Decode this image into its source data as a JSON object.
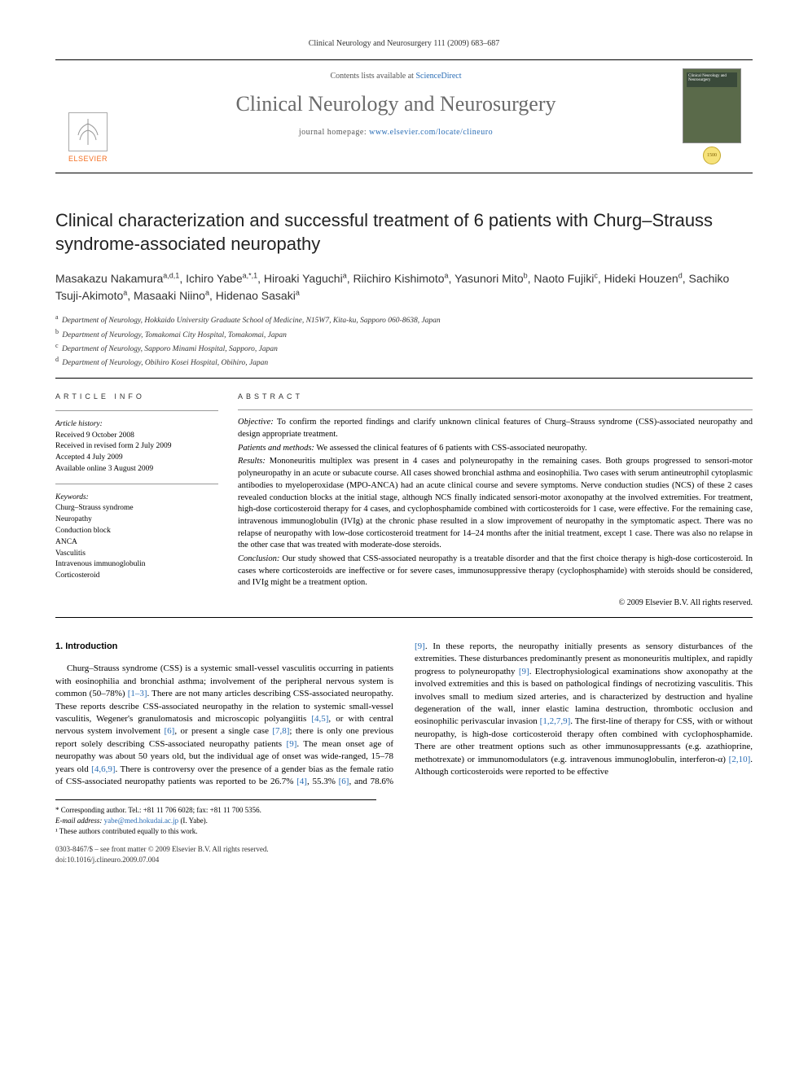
{
  "running_head": "Clinical Neurology and Neurosurgery 111 (2009) 683–687",
  "masthead": {
    "contents_prefix": "Contents lists available at ",
    "contents_link": "ScienceDirect",
    "journal": "Clinical Neurology and Neurosurgery",
    "homepage_prefix": "journal homepage: ",
    "homepage_url": "www.elsevier.com/locate/clineuro",
    "publisher": "ELSEVIER",
    "badge": "1500"
  },
  "title": "Clinical characterization and successful treatment of 6 patients with Churg–Strauss syndrome-associated neuropathy",
  "authors_html": "Masakazu Nakamura<sup>a,d,1</sup>, Ichiro Yabe<sup>a,*,1</sup>, Hiroaki Yaguchi<sup>a</sup>, Riichiro Kishimoto<sup>a</sup>, Yasunori Mito<sup>b</sup>, Naoto Fujiki<sup>c</sup>, Hideki Houzen<sup>d</sup>, Sachiko Tsuji-Akimoto<sup>a</sup>, Masaaki Niino<sup>a</sup>, Hidenao Sasaki<sup>a</sup>",
  "affiliations": [
    {
      "sup": "a",
      "text": "Department of Neurology, Hokkaido University Graduate School of Medicine, N15W7, Kita-ku, Sapporo 060-8638, Japan"
    },
    {
      "sup": "b",
      "text": "Department of Neurology, Tomakomai City Hospital, Tomakomai, Japan"
    },
    {
      "sup": "c",
      "text": "Department of Neurology, Sapporo Minami Hospital, Sapporo, Japan"
    },
    {
      "sup": "d",
      "text": "Department of Neurology, Obihiro Kosei Hospital, Obihiro, Japan"
    }
  ],
  "article_info": {
    "heading": "article info",
    "history_label": "Article history:",
    "history": [
      "Received 9 October 2008",
      "Received in revised form 2 July 2009",
      "Accepted 4 July 2009",
      "Available online 3 August 2009"
    ],
    "keywords_label": "Keywords:",
    "keywords": [
      "Churg–Strauss syndrome",
      "Neuropathy",
      "Conduction block",
      "ANCA",
      "Vasculitis",
      "Intravenous immunoglobulin",
      "Corticosteroid"
    ]
  },
  "abstract": {
    "heading": "abstract",
    "items": [
      {
        "label": "Objective:",
        "text": "To confirm the reported findings and clarify unknown clinical features of Churg–Strauss syndrome (CSS)-associated neuropathy and design appropriate treatment."
      },
      {
        "label": "Patients and methods:",
        "text": "We assessed the clinical features of 6 patients with CSS-associated neuropathy."
      },
      {
        "label": "Results:",
        "text": "Mononeuritis multiplex was present in 4 cases and polyneuropathy in the remaining cases. Both groups progressed to sensori-motor polyneuropathy in an acute or subacute course. All cases showed bronchial asthma and eosinophilia. Two cases with serum antineutrophil cytoplasmic antibodies to myeloperoxidase (MPO-ANCA) had an acute clinical course and severe symptoms. Nerve conduction studies (NCS) of these 2 cases revealed conduction blocks at the initial stage, although NCS finally indicated sensori-motor axonopathy at the involved extremities. For treatment, high-dose corticosteroid therapy for 4 cases, and cyclophosphamide combined with corticosteroids for 1 case, were effective. For the remaining case, intravenous immunoglobulin (IVIg) at the chronic phase resulted in a slow improvement of neuropathy in the symptomatic aspect. There was no relapse of neuropathy with low-dose corticosteroid treatment for 14–24 months after the initial treatment, except 1 case. There was also no relapse in the other case that was treated with moderate-dose steroids."
      },
      {
        "label": "Conclusion:",
        "text": "Our study showed that CSS-associated neuropathy is a treatable disorder and that the first choice therapy is high-dose corticosteroid. In cases where corticosteroids are ineffective or for severe cases, immunosuppressive therapy (cyclophosphamide) with steroids should be considered, and IVIg might be a treatment option."
      }
    ],
    "copyright": "© 2009 Elsevier B.V. All rights reserved."
  },
  "intro": {
    "heading": "1.  Introduction",
    "para": "Churg–Strauss syndrome (CSS) is a systemic small-vessel vasculitis occurring in patients with eosinophilia and bronchial asthma; involvement of the peripheral nervous system is common (50–78%) [1–3]. There are not many articles describing CSS-associated neuropathy. These reports describe CSS-associated neuropathy in the relation to systemic small-vessel vasculitis, Wegener's granulomatosis and microscopic polyangiitis [4,5], or with central nervous system involvement [6], or present a single case [7,8]; there is only one previous report solely describing CSS-associated neuropathy patients [9]. The mean onset age of neuropathy was about 50 years old, but the individual age of onset was wide-ranged, 15–78 years old [4,6,9]. There is controversy over the presence of a gender bias as the female ratio of CSS-associated neuropathy patients was reported to be 26.7% [4], 55.3% [6], and 78.6% [9]. In these reports, the neuropathy initially presents as sensory disturbances of the extremities. These disturbances predominantly present as mononeuritis multiplex, and rapidly progress to polyneuropathy [9]. Electrophysiological examinations show axonopathy at the involved extremities and this is based on pathological findings of necrotizing vasculitis. This involves small to medium sized arteries, and is characterized by destruction and hyaline degeneration of the wall, inner elastic lamina destruction, thrombotic occlusion and eosinophilic perivascular invasion [1,2,7,9]. The first-line of therapy for CSS, with or without neuropathy, is high-dose corticosteroid therapy often combined with cyclophosphamide. There are other treatment options such as other immunosuppressants (e.g. azathioprine, methotrexate) or immunomodulators (e.g. intravenous immunoglobulin, interferon-α) [2,10]. Although corticosteroids were reported to be effective"
  },
  "footnotes": {
    "corr": "* Corresponding author. Tel.: +81 11 706 6028; fax: +81 11 700 5356.",
    "email_label": "E-mail address:",
    "email": "yabe@med.hokudai.ac.jp",
    "email_who": "(I. Yabe).",
    "equal": "¹ These authors contributed equally to this work."
  },
  "footer": {
    "line1": "0303-8467/$ – see front matter © 2009 Elsevier B.V. All rights reserved.",
    "line2": "doi:10.1016/j.clineuro.2009.07.004"
  },
  "colors": {
    "link": "#2a6db5",
    "publisher": "#f36f21",
    "journal_gray": "#6a6a6a"
  }
}
